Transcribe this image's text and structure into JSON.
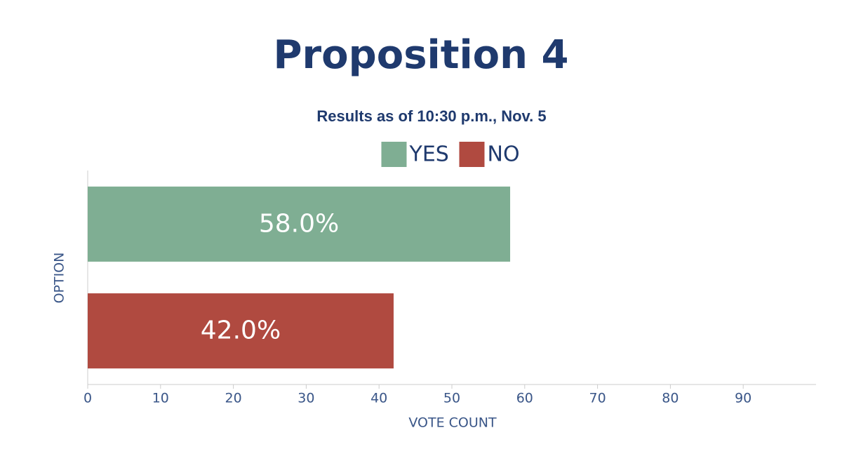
{
  "chart_data": {
    "type": "bar",
    "orientation": "horizontal",
    "title": "Proposition 4",
    "subtitle": "Results as of 10:30 p.m., Nov. 5",
    "x_label": "VOTE COUNT",
    "y_label": "OPTION",
    "categories": [
      null
    ],
    "series": [
      {
        "name": "YES",
        "color": "#7fae93",
        "values": [
          58
        ],
        "value_labels": [
          "58.0%"
        ]
      },
      {
        "name": "NO",
        "color": "#b04a40",
        "values": [
          42
        ],
        "value_labels": [
          "42.0%"
        ]
      }
    ],
    "xlim": [
      0,
      100
    ],
    "xticks": [
      0,
      10,
      20,
      30,
      40,
      50,
      60,
      70,
      80,
      90
    ],
    "legend": "top"
  }
}
